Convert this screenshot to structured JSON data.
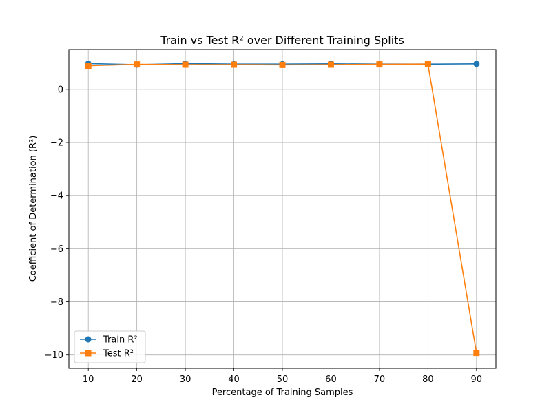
{
  "chart_data": {
    "type": "line",
    "title": "Train vs Test R² over Different Training Splits",
    "xlabel": "Percentage of Training Samples",
    "ylabel": "Coefficient of Determination (R²)",
    "x": [
      10,
      20,
      30,
      40,
      50,
      60,
      70,
      80,
      90
    ],
    "xticks": [
      "10",
      "20",
      "30",
      "40",
      "50",
      "60",
      "70",
      "80",
      "90"
    ],
    "yticks": [
      {
        "value": 0,
        "label": "0"
      },
      {
        "value": -2,
        "label": "−2"
      },
      {
        "value": -4,
        "label": "−4"
      },
      {
        "value": -6,
        "label": "−6"
      },
      {
        "value": -8,
        "label": "−8"
      },
      {
        "value": -10,
        "label": "−10"
      }
    ],
    "xlim": [
      6,
      94
    ],
    "ylim": [
      -10.5,
      1.5
    ],
    "grid": true,
    "legend_position": "lower-left",
    "series": [
      {
        "name": "Train R²",
        "marker": "circle",
        "color": "#1f77b4",
        "values": [
          0.97,
          0.93,
          0.97,
          0.95,
          0.95,
          0.96,
          0.95,
          0.95,
          0.96
        ]
      },
      {
        "name": "Test R²",
        "marker": "square",
        "color": "#ff7f0e",
        "values": [
          0.89,
          0.94,
          0.93,
          0.93,
          0.92,
          0.93,
          0.94,
          0.95,
          -9.92
        ]
      }
    ]
  }
}
